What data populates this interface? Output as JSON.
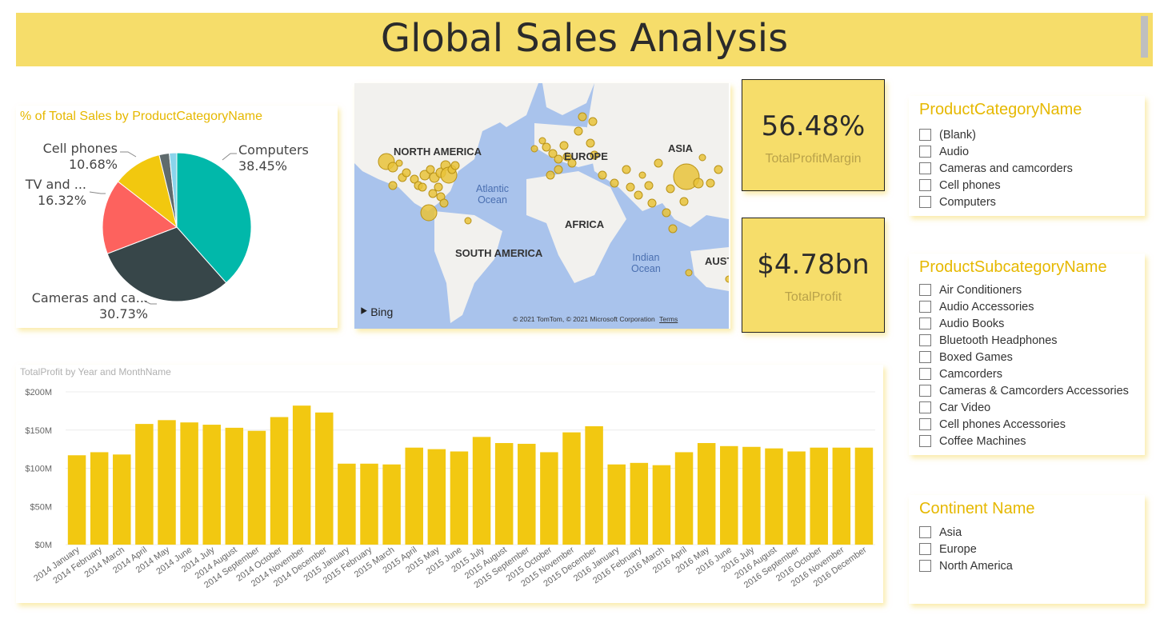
{
  "header": {
    "title": "Global Sales Analysis"
  },
  "pie": {
    "title": "% of Total Sales by ProductCategoryName",
    "labels": [
      {
        "name": "Computers",
        "pct": "38.45%"
      },
      {
        "name": "Cameras and ca...",
        "pct": "30.73%"
      },
      {
        "name": "TV and ...",
        "pct": "16.32%"
      },
      {
        "name": "Cell phones",
        "pct": "10.68%"
      }
    ]
  },
  "map": {
    "continents": [
      "NORTH AMERICA",
      "EUROPE",
      "ASIA",
      "AFRICA",
      "SOUTH AMERICA",
      "AUST"
    ],
    "oceans": [
      "Atlantic\nOcean",
      "Indian\nOcean"
    ],
    "brand": "Bing",
    "copyright": "© 2021 TomTom, © 2021 Microsoft Corporation",
    "terms": "Terms"
  },
  "kpis": [
    {
      "value": "56.48%",
      "label": "TotalProfitMargin"
    },
    {
      "value": "$4.78bn",
      "label": "TotalProfit"
    }
  ],
  "slicers": {
    "category": {
      "title": "ProductCategoryName",
      "items": [
        "(Blank)",
        "Audio",
        "Cameras and camcorders",
        "Cell phones",
        "Computers"
      ]
    },
    "subcategory": {
      "title": "ProductSubcategoryName",
      "items": [
        "Air Conditioners",
        "Audio Accessories",
        "Audio Books",
        "Bluetooth Headphones",
        "Boxed Games",
        "Camcorders",
        "Cameras & Camcorders Accessories",
        "Car Video",
        "Cell phones Accessories",
        "Coffee Machines"
      ]
    },
    "continent": {
      "title": "Continent Name",
      "items": [
        "Asia",
        "Europe",
        "North America"
      ]
    }
  },
  "colors": {
    "banner": "#f6dd6a",
    "accent": "#e6b800",
    "bar": "#f2c811",
    "pie": [
      "#01b8aa",
      "#374649",
      "#fd625e",
      "#f2c80f",
      "#5f6b6d",
      "#8ad4eb"
    ]
  },
  "chart_data": [
    {
      "type": "pie",
      "title": "% of Total Sales by ProductCategoryName",
      "categories": [
        "Computers",
        "Cameras and ca...",
        "TV and ...",
        "Cell phones",
        "",
        ""
      ],
      "values": [
        38.45,
        30.73,
        16.32,
        10.68,
        2.2,
        1.62
      ]
    },
    {
      "type": "bar",
      "title": "TotalProfit by Year and MonthName",
      "xlabel": "",
      "ylabel": "",
      "ylim": [
        0,
        200
      ],
      "yticks": [
        "$0M",
        "$50M",
        "$100M",
        "$150M",
        "$200M"
      ],
      "grid": true,
      "categories": [
        "2014 January",
        "2014 February",
        "2014 March",
        "2014 April",
        "2014 May",
        "2014 June",
        "2014 July",
        "2014 August",
        "2014 September",
        "2014 October",
        "2014 November",
        "2014 December",
        "2015 January",
        "2015 February",
        "2015 March",
        "2015 April",
        "2015 May",
        "2015 June",
        "2015 July",
        "2015 August",
        "2015 September",
        "2015 October",
        "2015 November",
        "2015 December",
        "2016 January",
        "2016 February",
        "2016 March",
        "2016 April",
        "2016 May",
        "2016 June",
        "2016 July",
        "2016 August",
        "2016 September",
        "2016 October",
        "2016 November",
        "2016 December"
      ],
      "values": [
        117,
        121,
        118,
        158,
        163,
        160,
        157,
        153,
        149,
        167,
        182,
        173,
        106,
        106,
        105,
        127,
        125,
        122,
        141,
        133,
        132,
        121,
        147,
        155,
        105,
        107,
        104,
        121,
        133,
        129,
        128,
        126,
        122,
        127,
        127,
        127
      ]
    }
  ]
}
